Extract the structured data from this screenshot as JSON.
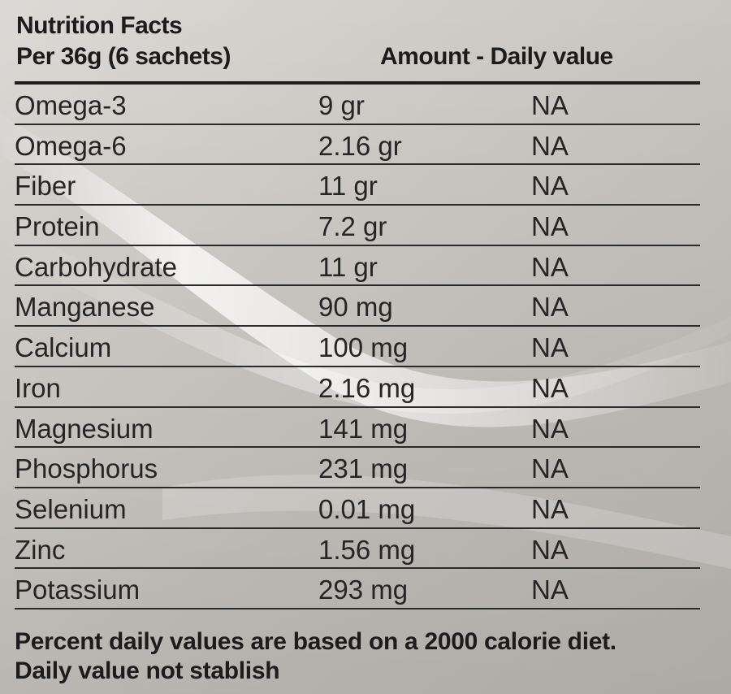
{
  "header": {
    "title": "Nutrition Facts",
    "serving": "Per 36g (6 sachets)",
    "amount_label": "Amount - Daily value"
  },
  "nutrients": [
    {
      "name": "Omega-3",
      "amount": "9 gr",
      "dv": "NA"
    },
    {
      "name": "Omega-6",
      "amount": "2.16 gr",
      "dv": "NA"
    },
    {
      "name": "Fiber",
      "amount": "11 gr",
      "dv": "NA"
    },
    {
      "name": "Protein",
      "amount": "7.2 gr",
      "dv": "NA"
    },
    {
      "name": "Carbohydrate",
      "amount": "11 gr",
      "dv": "NA"
    },
    {
      "name": "Manganese",
      "amount": "90 mg",
      "dv": "NA"
    },
    {
      "name": "Calcium",
      "amount": "100 mg",
      "dv": "NA"
    },
    {
      "name": "Iron",
      "amount": "2.16 mg",
      "dv": "NA"
    },
    {
      "name": "Magnesium",
      "amount": "141 mg",
      "dv": "NA"
    },
    {
      "name": "Phosphorus",
      "amount": "231 mg",
      "dv": "NA"
    },
    {
      "name": "Selenium",
      "amount": "0.01 mg",
      "dv": "NA"
    },
    {
      "name": "Zinc",
      "amount": "1.56 mg",
      "dv": "NA"
    },
    {
      "name": "Potassium",
      "amount": "293 mg",
      "dv": "NA"
    }
  ],
  "footer": {
    "line1": "Percent daily values are based on a 2000 calorie diet.",
    "line2": "Daily value not stablish"
  }
}
